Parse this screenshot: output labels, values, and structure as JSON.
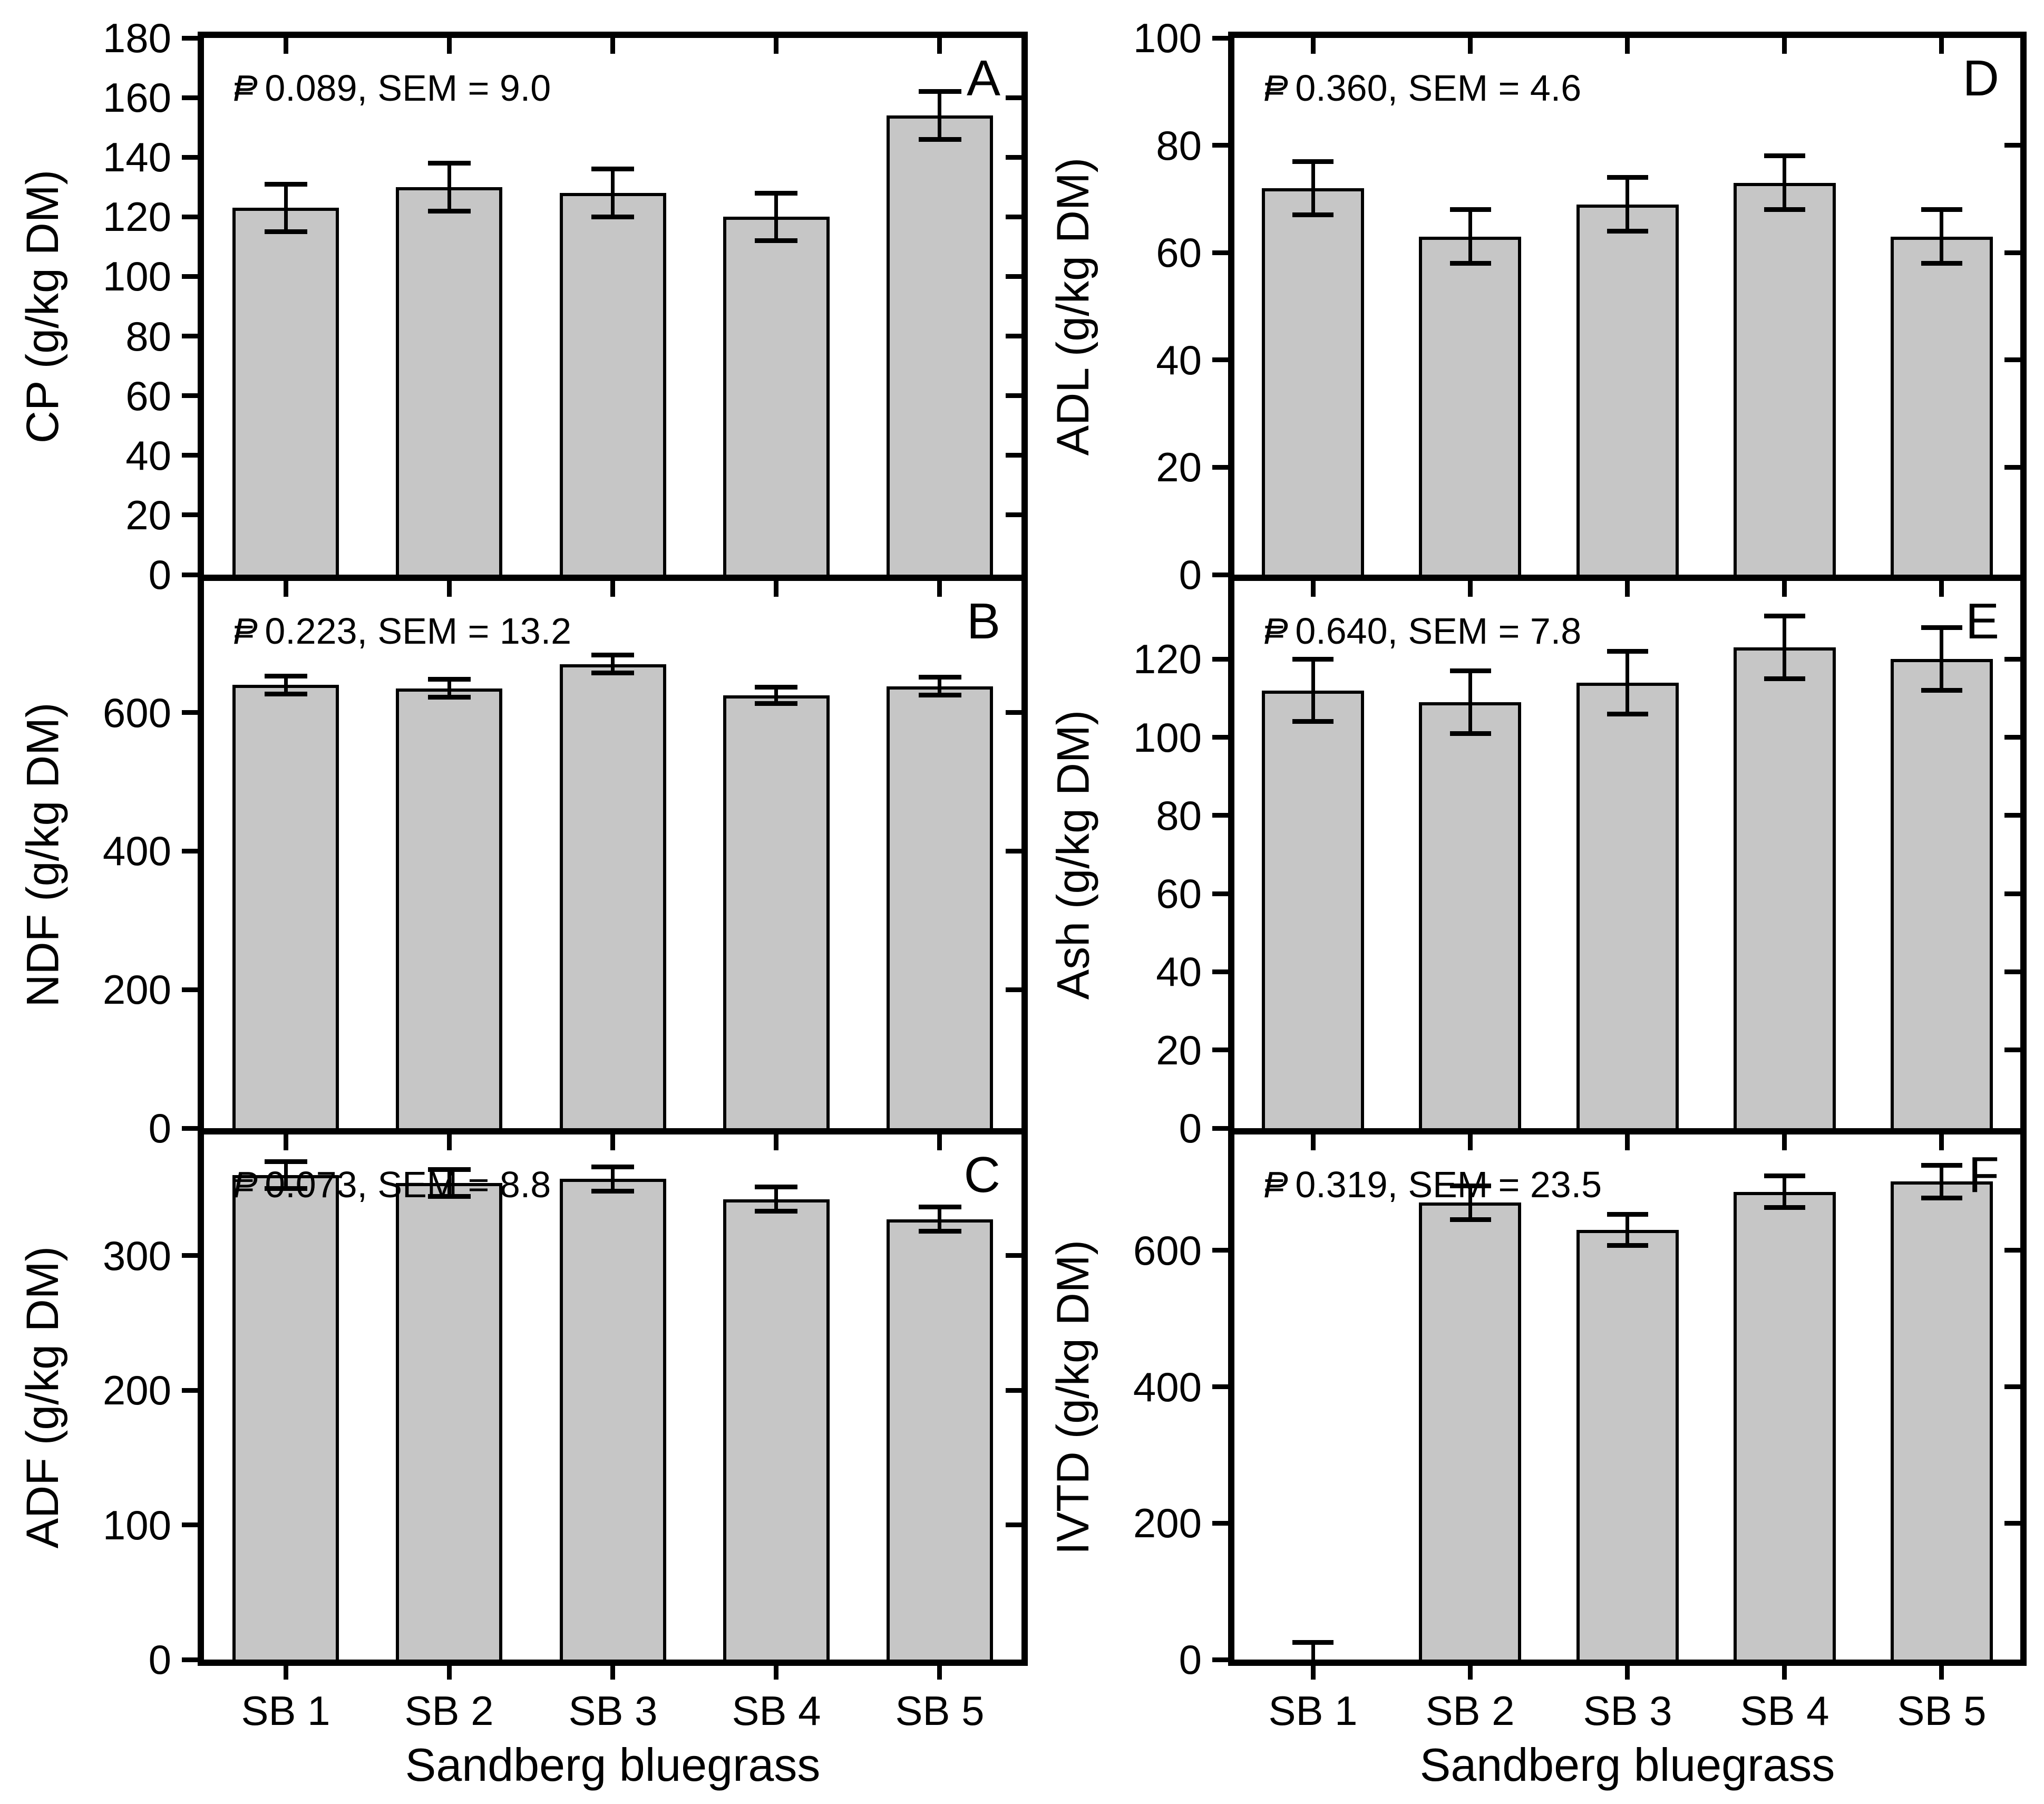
{
  "figure": {
    "xlabel": "Sandberg bluegrass",
    "categories": [
      "SB 1",
      "SB 2",
      "SB 3",
      "SB 4",
      "SB 5"
    ],
    "colors": {
      "background": "#ffffff",
      "bar_fill": "#c6c6c6",
      "bar_stroke": "#000000",
      "text": "#000000"
    }
  },
  "chart_data": [
    {
      "type": "bar",
      "panel_letter": "A",
      "ylabel": "CP (g/kg DM)",
      "p_label": "P",
      "p_value": "0.089",
      "sem_label": "SEM",
      "sem_value": "9.0",
      "categories": [
        "SB 1",
        "SB 2",
        "SB 3",
        "SB 4",
        "SB 5"
      ],
      "values": [
        123,
        130,
        128,
        120,
        154
      ],
      "errors": [
        8,
        8,
        8,
        8,
        8
      ],
      "ylim": [
        0,
        180
      ],
      "yticks": [
        0,
        20,
        40,
        60,
        80,
        100,
        120,
        140,
        160,
        180
      ]
    },
    {
      "type": "bar",
      "panel_letter": "B",
      "ylabel": "NDF (g/kg DM)",
      "p_label": "P",
      "p_value": "0.223",
      "sem_label": "SEM",
      "sem_value": "13.2",
      "categories": [
        "SB 1",
        "SB 2",
        "SB 3",
        "SB 4",
        "SB 5"
      ],
      "values": [
        640,
        635,
        670,
        625,
        638
      ],
      "errors": [
        13,
        13,
        13,
        12,
        13
      ],
      "ylim": [
        0,
        790
      ],
      "yticks": [
        0,
        200,
        400,
        600
      ]
    },
    {
      "type": "bar",
      "panel_letter": "C",
      "ylabel": "ADF (g/kg DM)",
      "p_label": "P",
      "p_value": "0.073",
      "sem_label": "SEM",
      "sem_value": "8.8",
      "categories": [
        "SB 1",
        "SB 2",
        "SB 3",
        "SB 4",
        "SB 5"
      ],
      "values": [
        360,
        354,
        357,
        342,
        327
      ],
      "errors": [
        10,
        10,
        9,
        9,
        9
      ],
      "ylim": [
        0,
        390
      ],
      "yticks": [
        0,
        100,
        200,
        300
      ]
    },
    {
      "type": "bar",
      "panel_letter": "D",
      "ylabel": "ADL (g/kg DM)",
      "p_label": "P",
      "p_value": "0.360",
      "sem_label": "SEM",
      "sem_value": "4.6",
      "categories": [
        "SB 1",
        "SB 2",
        "SB 3",
        "SB 4",
        "SB 5"
      ],
      "values": [
        72,
        63,
        69,
        73,
        63
      ],
      "errors": [
        5,
        5,
        5,
        5,
        5
      ],
      "ylim": [
        0,
        100
      ],
      "yticks": [
        0,
        20,
        40,
        60,
        80,
        100
      ]
    },
    {
      "type": "bar",
      "panel_letter": "E",
      "ylabel": "Ash (g/kg DM)",
      "p_label": "P",
      "p_value": "0.640",
      "sem_label": "SEM",
      "sem_value": "7.8",
      "categories": [
        "SB 1",
        "SB 2",
        "SB 3",
        "SB 4",
        "SB 5"
      ],
      "values": [
        112,
        109,
        114,
        123,
        120
      ],
      "errors": [
        8,
        8,
        8,
        8,
        8
      ],
      "ylim": [
        0,
        140
      ],
      "yticks": [
        0,
        20,
        40,
        60,
        80,
        100,
        120
      ]
    },
    {
      "type": "bar",
      "panel_letter": "F",
      "ylabel": "IVTD (g/kg DM)",
      "p_label": "P",
      "p_value": "0.319",
      "sem_label": "SEM",
      "sem_value": "23.5",
      "categories": [
        "SB 1",
        "SB 2",
        "SB 3",
        "SB 4",
        "SB 5"
      ],
      "values": [
        0,
        670,
        630,
        686,
        701
      ],
      "errors": [
        25,
        25,
        23,
        23,
        24
      ],
      "ylim": [
        0,
        770
      ],
      "yticks": [
        0,
        200,
        400,
        600
      ]
    }
  ]
}
